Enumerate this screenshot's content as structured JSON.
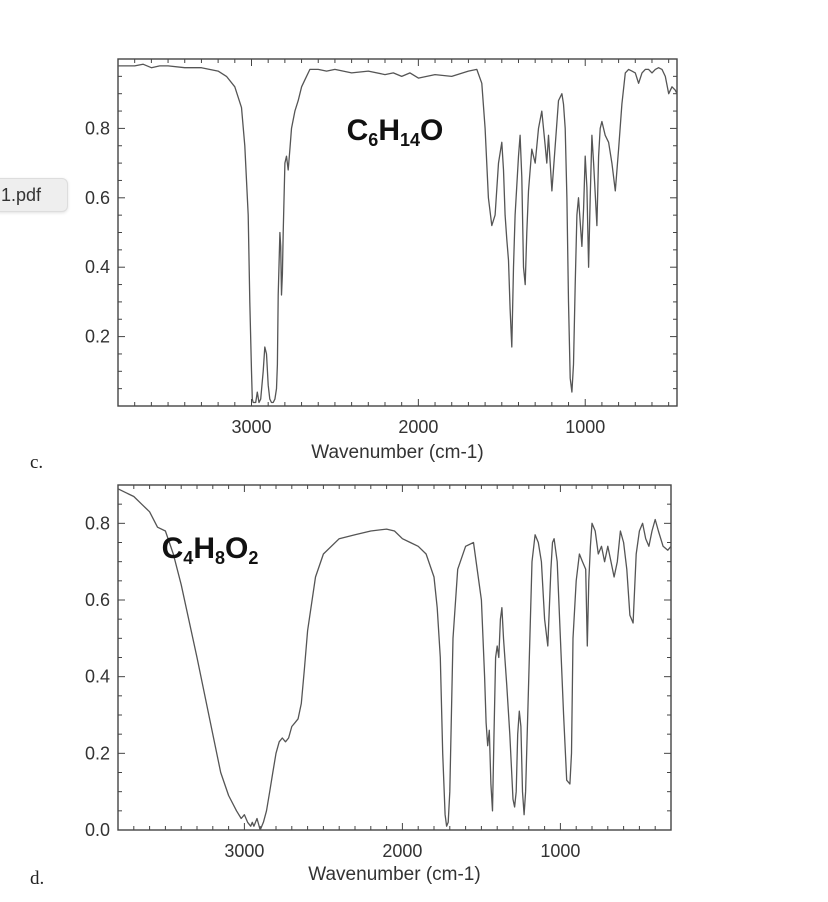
{
  "file_tab": {
    "label": "1.pdf"
  },
  "labels": {
    "c": "c.",
    "d": "d."
  },
  "chart_data": [
    {
      "type": "line",
      "formula": {
        "parts": [
          [
            "C",
            ""
          ],
          [
            "6",
            "sub"
          ],
          [
            "H",
            ""
          ],
          [
            "14",
            "sub"
          ],
          [
            "O",
            ""
          ]
        ]
      },
      "xlabel": "Wavenumber (cm-1)",
      "ylabel": "",
      "xlim": [
        3800,
        450
      ],
      "ylim": [
        0,
        1.0
      ],
      "x_ticks": [
        3000,
        2000,
        1000
      ],
      "y_ticks": [
        0.2,
        0.4,
        0.6,
        0.8
      ],
      "y_tick_labels": [
        "0.2",
        "0.4",
        "0.6",
        "0.8"
      ],
      "line_color": "#555555",
      "series": [
        {
          "x": [
            3800,
            3700,
            3650,
            3600,
            3550,
            3500,
            3400,
            3300,
            3200,
            3150,
            3100,
            3060,
            3040,
            3020,
            3010,
            3000,
            2995,
            2990,
            2985,
            2975,
            2965,
            2955,
            2945,
            2930,
            2920,
            2910,
            2900,
            2890,
            2880,
            2870,
            2860,
            2850,
            2845,
            2840,
            2830,
            2825,
            2820,
            2815,
            2810,
            2800,
            2790,
            2780,
            2770,
            2760,
            2740,
            2720,
            2700,
            2680,
            2650,
            2600,
            2550,
            2500,
            2400,
            2300,
            2200,
            2150,
            2100,
            2050,
            2000,
            1900,
            1800,
            1700,
            1650,
            1620,
            1600,
            1580,
            1560,
            1540,
            1520,
            1500,
            1490,
            1480,
            1470,
            1460,
            1450,
            1440,
            1430,
            1420,
            1400,
            1390,
            1380,
            1370,
            1360,
            1350,
            1340,
            1320,
            1300,
            1280,
            1260,
            1240,
            1230,
            1220,
            1200,
            1180,
            1160,
            1140,
            1130,
            1120,
            1110,
            1100,
            1090,
            1080,
            1070,
            1060,
            1050,
            1040,
            1020,
            1010,
            1000,
            990,
            980,
            970,
            960,
            950,
            930,
            920,
            910,
            900,
            880,
            860,
            840,
            820,
            800,
            780,
            760,
            740,
            720,
            700,
            680,
            660,
            640,
            620,
            600,
            580,
            560,
            540,
            520,
            500,
            480,
            460,
            450
          ],
          "y": [
            0.98,
            0.98,
            0.985,
            0.975,
            0.98,
            0.98,
            0.975,
            0.975,
            0.965,
            0.95,
            0.92,
            0.86,
            0.75,
            0.55,
            0.3,
            0.1,
            0.02,
            0.01,
            0.01,
            0.01,
            0.04,
            0.01,
            0.02,
            0.1,
            0.17,
            0.15,
            0.06,
            0.02,
            0.01,
            0.01,
            0.02,
            0.05,
            0.12,
            0.32,
            0.5,
            0.46,
            0.32,
            0.38,
            0.5,
            0.7,
            0.72,
            0.68,
            0.74,
            0.8,
            0.85,
            0.88,
            0.92,
            0.94,
            0.97,
            0.97,
            0.965,
            0.97,
            0.96,
            0.965,
            0.955,
            0.96,
            0.95,
            0.96,
            0.945,
            0.955,
            0.95,
            0.965,
            0.97,
            0.93,
            0.8,
            0.6,
            0.52,
            0.55,
            0.7,
            0.76,
            0.68,
            0.55,
            0.48,
            0.42,
            0.28,
            0.17,
            0.4,
            0.55,
            0.72,
            0.78,
            0.66,
            0.4,
            0.35,
            0.5,
            0.62,
            0.74,
            0.7,
            0.8,
            0.85,
            0.75,
            0.7,
            0.78,
            0.62,
            0.75,
            0.88,
            0.9,
            0.87,
            0.8,
            0.6,
            0.3,
            0.08,
            0.04,
            0.12,
            0.35,
            0.55,
            0.6,
            0.46,
            0.57,
            0.72,
            0.63,
            0.4,
            0.6,
            0.78,
            0.7,
            0.52,
            0.72,
            0.8,
            0.82,
            0.78,
            0.76,
            0.7,
            0.62,
            0.74,
            0.87,
            0.96,
            0.97,
            0.965,
            0.96,
            0.93,
            0.96,
            0.97,
            0.97,
            0.96,
            0.97,
            0.975,
            0.97,
            0.95,
            0.9,
            0.92,
            0.91,
            0.9
          ]
        }
      ]
    },
    {
      "type": "line",
      "formula": {
        "parts": [
          [
            "C",
            ""
          ],
          [
            "4",
            "sub"
          ],
          [
            "H",
            ""
          ],
          [
            "8",
            "sub"
          ],
          [
            "O",
            ""
          ],
          [
            "2",
            "sub"
          ]
        ]
      },
      "xlabel": "Wavenumber (cm-1)",
      "ylabel": "",
      "xlim": [
        3800,
        300
      ],
      "ylim": [
        0,
        0.9
      ],
      "x_ticks": [
        3000,
        2000,
        1000
      ],
      "y_ticks": [
        0.0,
        0.2,
        0.4,
        0.6,
        0.8
      ],
      "y_tick_labels": [
        "0.0",
        "0.2",
        "0.4",
        "0.6",
        "0.8"
      ],
      "line_color": "#555555",
      "series": [
        {
          "x": [
            3800,
            3750,
            3700,
            3650,
            3600,
            3550,
            3500,
            3450,
            3400,
            3300,
            3200,
            3150,
            3100,
            3050,
            3020,
            3000,
            2980,
            2960,
            2950,
            2940,
            2920,
            2900,
            2880,
            2860,
            2840,
            2820,
            2800,
            2780,
            2760,
            2740,
            2720,
            2700,
            2680,
            2660,
            2640,
            2620,
            2600,
            2550,
            2500,
            2400,
            2300,
            2200,
            2100,
            2050,
            2000,
            1950,
            1900,
            1850,
            1800,
            1780,
            1760,
            1745,
            1730,
            1720,
            1710,
            1700,
            1680,
            1650,
            1600,
            1550,
            1500,
            1480,
            1470,
            1460,
            1450,
            1440,
            1430,
            1420,
            1410,
            1400,
            1390,
            1380,
            1370,
            1360,
            1350,
            1340,
            1320,
            1300,
            1290,
            1280,
            1270,
            1260,
            1250,
            1240,
            1230,
            1220,
            1200,
            1180,
            1160,
            1140,
            1120,
            1100,
            1080,
            1060,
            1050,
            1040,
            1020,
            1000,
            980,
            960,
            940,
            930,
            920,
            900,
            880,
            860,
            840,
            830,
            820,
            810,
            800,
            780,
            760,
            740,
            720,
            700,
            680,
            660,
            640,
            620,
            600,
            580,
            560,
            540,
            520,
            500,
            480,
            460,
            440,
            420,
            400,
            380,
            350,
            320,
            300
          ],
          "y": [
            0.89,
            0.88,
            0.87,
            0.85,
            0.83,
            0.79,
            0.78,
            0.72,
            0.64,
            0.45,
            0.25,
            0.15,
            0.09,
            0.05,
            0.03,
            0.04,
            0.02,
            0.01,
            0.02,
            0.01,
            0.03,
            0.0,
            0.02,
            0.05,
            0.1,
            0.15,
            0.2,
            0.23,
            0.24,
            0.23,
            0.24,
            0.27,
            0.28,
            0.29,
            0.33,
            0.42,
            0.52,
            0.66,
            0.72,
            0.76,
            0.77,
            0.78,
            0.785,
            0.78,
            0.76,
            0.75,
            0.74,
            0.72,
            0.66,
            0.58,
            0.45,
            0.2,
            0.04,
            0.01,
            0.02,
            0.1,
            0.5,
            0.68,
            0.74,
            0.75,
            0.6,
            0.4,
            0.28,
            0.22,
            0.26,
            0.12,
            0.05,
            0.25,
            0.45,
            0.48,
            0.45,
            0.55,
            0.58,
            0.5,
            0.44,
            0.38,
            0.25,
            0.08,
            0.06,
            0.1,
            0.25,
            0.31,
            0.27,
            0.1,
            0.04,
            0.1,
            0.4,
            0.7,
            0.77,
            0.75,
            0.7,
            0.55,
            0.48,
            0.68,
            0.75,
            0.76,
            0.7,
            0.5,
            0.3,
            0.13,
            0.12,
            0.2,
            0.5,
            0.65,
            0.72,
            0.7,
            0.68,
            0.48,
            0.65,
            0.74,
            0.8,
            0.78,
            0.72,
            0.74,
            0.7,
            0.74,
            0.7,
            0.66,
            0.7,
            0.78,
            0.75,
            0.68,
            0.56,
            0.54,
            0.72,
            0.78,
            0.8,
            0.76,
            0.74,
            0.78,
            0.81,
            0.78,
            0.74,
            0.73,
            0.74
          ]
        }
      ]
    }
  ]
}
